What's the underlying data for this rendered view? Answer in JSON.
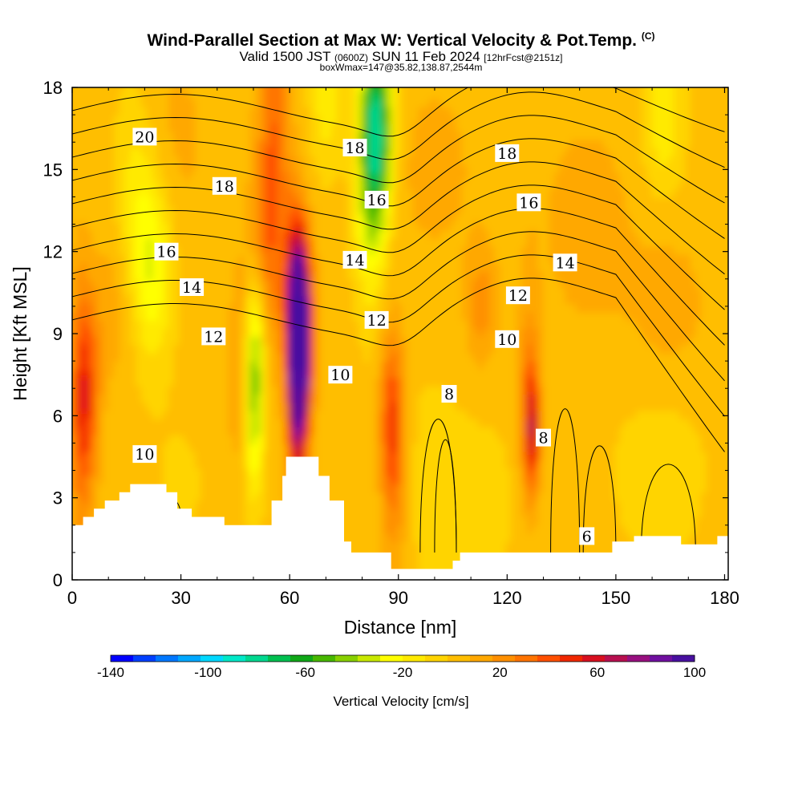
{
  "header": {
    "title": "Wind-Parallel Section at Max W: Vertical Velocity & Pot.Temp.",
    "copyright": "(C)",
    "valid_prefix": "Valid 1500 JST",
    "valid_utc": "(0600Z)",
    "valid_date": "SUN 11 Feb 2024",
    "forecast_info": "[12hrFcst@2151z]",
    "box_info": "boxWmax=147@35.82,138.87,2544m"
  },
  "chart_data": {
    "type": "heatmap",
    "xlabel": "Distance [nm]",
    "ylabel": "Height [Kft MSL]",
    "xlim": [
      0,
      181
    ],
    "ylim": [
      0,
      18
    ],
    "x_ticks": [
      0,
      30,
      60,
      90,
      120,
      150,
      180
    ],
    "y_ticks": [
      0,
      3,
      6,
      9,
      12,
      15,
      18
    ],
    "colorbar": {
      "title": "Vertical Velocity [cm/s]",
      "tick_values": [
        -140,
        -100,
        -60,
        -20,
        20,
        60,
        100
      ],
      "range": [
        -140,
        100
      ],
      "colors": [
        "#0000ff",
        "#0040ff",
        "#0078ff",
        "#00a8ff",
        "#00d8ff",
        "#00e8c8",
        "#00d890",
        "#00c050",
        "#10a818",
        "#48b800",
        "#88d000",
        "#c8e800",
        "#ffff00",
        "#ffea00",
        "#ffd400",
        "#ffbe00",
        "#ffa800",
        "#ff9000",
        "#ff7400",
        "#ff5000",
        "#f02800",
        "#d81020",
        "#b81050",
        "#981080",
        "#7010a0",
        "#4810a0"
      ]
    },
    "contour_labels": [
      {
        "text": "20",
        "x": 20,
        "y": 16.2
      },
      {
        "text": "18",
        "x": 42,
        "y": 14.4
      },
      {
        "text": "18",
        "x": 78,
        "y": 15.8
      },
      {
        "text": "18",
        "x": 120,
        "y": 15.6
      },
      {
        "text": "16",
        "x": 26,
        "y": 12.0
      },
      {
        "text": "16",
        "x": 84,
        "y": 13.9
      },
      {
        "text": "16",
        "x": 126,
        "y": 13.8
      },
      {
        "text": "14",
        "x": 33,
        "y": 10.7
      },
      {
        "text": "14",
        "x": 78,
        "y": 11.7
      },
      {
        "text": "14",
        "x": 136,
        "y": 11.6
      },
      {
        "text": "12",
        "x": 39,
        "y": 8.9
      },
      {
        "text": "12",
        "x": 84,
        "y": 9.5
      },
      {
        "text": "12",
        "x": 123,
        "y": 10.4
      },
      {
        "text": "10",
        "x": 74,
        "y": 7.5
      },
      {
        "text": "10",
        "x": 120,
        "y": 8.8
      },
      {
        "text": "10",
        "x": 20,
        "y": 4.6
      },
      {
        "text": "8",
        "x": 104,
        "y": 6.8
      },
      {
        "text": "8",
        "x": 130,
        "y": 5.2
      },
      {
        "text": "6",
        "x": 142,
        "y": 1.6
      }
    ],
    "terrain": [
      [
        0,
        2
      ],
      [
        3,
        2
      ],
      [
        3,
        2.3
      ],
      [
        6,
        2.3
      ],
      [
        6,
        2.6
      ],
      [
        9,
        2.6
      ],
      [
        9,
        2.9
      ],
      [
        13,
        2.9
      ],
      [
        13,
        3.2
      ],
      [
        16,
        3.2
      ],
      [
        16,
        3.5
      ],
      [
        26,
        3.5
      ],
      [
        26,
        3.2
      ],
      [
        29,
        3.2
      ],
      [
        29,
        2.6
      ],
      [
        33,
        2.6
      ],
      [
        33,
        2.3
      ],
      [
        42,
        2.3
      ],
      [
        42,
        2
      ],
      [
        55,
        2
      ],
      [
        55,
        2.9
      ],
      [
        58,
        2.9
      ],
      [
        58,
        3.8
      ],
      [
        59,
        3.8
      ],
      [
        59,
        4.5
      ],
      [
        68,
        4.5
      ],
      [
        68,
        3.8
      ],
      [
        71,
        3.8
      ],
      [
        71,
        2.9
      ],
      [
        75,
        2.9
      ],
      [
        75,
        1.4
      ],
      [
        77,
        1.4
      ],
      [
        77,
        1
      ],
      [
        88,
        1
      ],
      [
        88,
        0.4
      ],
      [
        105,
        0.4
      ],
      [
        105,
        0.7
      ],
      [
        107,
        0.7
      ],
      [
        107,
        1
      ],
      [
        149,
        1
      ],
      [
        149,
        1.4
      ],
      [
        155,
        1.4
      ],
      [
        155,
        1.6
      ],
      [
        168,
        1.6
      ],
      [
        168,
        1.3
      ],
      [
        178,
        1.3
      ],
      [
        178,
        1.6
      ],
      [
        181,
        1.6
      ]
    ]
  }
}
